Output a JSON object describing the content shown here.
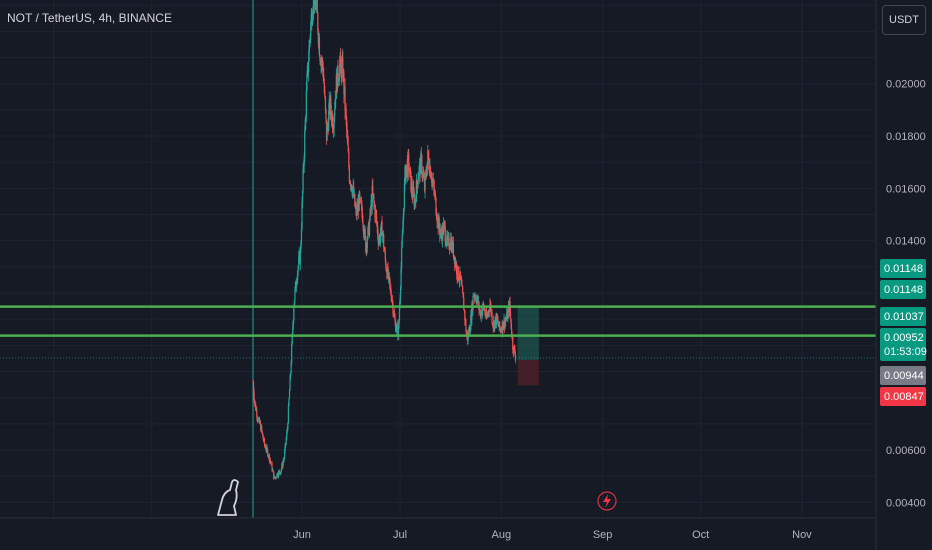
{
  "header": {
    "title": "NOT / TetherUS, 4h, BINANCE",
    "currency_button": "USDT"
  },
  "colors": {
    "background": "#161a25",
    "up": "#26a69a",
    "down": "#ef5350",
    "level_line": "#4caf50",
    "target_zone": "#1c4d48",
    "stop_zone": "#4a2027",
    "stop_label": "#f23645",
    "neutral_label": "#787b86"
  },
  "chart_data": {
    "type": "candlestick",
    "x_axis": {
      "tick_labels": [
        "Jun",
        "Jul",
        "Aug",
        "Sep",
        "Oct",
        "Nov"
      ],
      "ticks_day_offset": [
        0,
        30,
        61,
        92,
        122,
        153
      ],
      "range_day_offset": [
        -15,
        172
      ]
    },
    "y_axis": {
      "tick_labels": [
        "0.02000",
        "0.01800",
        "0.01600",
        "0.01400",
        "0.00600",
        "0.00400"
      ],
      "tick_values": [
        0.02,
        0.018,
        0.016,
        0.014,
        0.006,
        0.004
      ],
      "range": [
        0.0034,
        0.0232
      ]
    },
    "path_points": [
      [
        -15.0,
        0.0086
      ],
      [
        -14.5,
        0.0078
      ],
      [
        -13.5,
        0.0072
      ],
      [
        -12.5,
        0.0068
      ],
      [
        -11.5,
        0.0062
      ],
      [
        -10.5,
        0.0059
      ],
      [
        -9.5,
        0.0055
      ],
      [
        -8.5,
        0.0049
      ],
      [
        -7.5,
        0.0051
      ],
      [
        -6.5,
        0.0052
      ],
      [
        -5.5,
        0.0057
      ],
      [
        -4.5,
        0.0068
      ],
      [
        -3.5,
        0.009
      ],
      [
        -2.5,
        0.0116
      ],
      [
        -1.5,
        0.0128
      ],
      [
        -0.5,
        0.0135
      ],
      [
        0.5,
        0.017
      ],
      [
        1.5,
        0.02
      ],
      [
        2.5,
        0.022
      ],
      [
        3.5,
        0.0235
      ],
      [
        4.5,
        0.0228
      ],
      [
        5.5,
        0.0212
      ],
      [
        6.5,
        0.0205
      ],
      [
        7.5,
        0.018
      ],
      [
        8.5,
        0.0192
      ],
      [
        9.5,
        0.0185
      ],
      [
        10.5,
        0.02
      ],
      [
        11.5,
        0.0207
      ],
      [
        12.5,
        0.0205
      ],
      [
        13.5,
        0.0185
      ],
      [
        14.5,
        0.0165
      ],
      [
        15.5,
        0.016
      ],
      [
        16.5,
        0.015
      ],
      [
        17.5,
        0.0155
      ],
      [
        18.5,
        0.015
      ],
      [
        19.5,
        0.0138
      ],
      [
        20.5,
        0.0145
      ],
      [
        21.5,
        0.0158
      ],
      [
        22.5,
        0.015
      ],
      [
        23.5,
        0.014
      ],
      [
        24.5,
        0.0145
      ],
      [
        25.5,
        0.0132
      ],
      [
        26.5,
        0.0125
      ],
      [
        27.5,
        0.0118
      ],
      [
        28.5,
        0.0108
      ],
      [
        29.5,
        0.0105
      ],
      [
        30.5,
        0.0135
      ],
      [
        31.5,
        0.0165
      ],
      [
        32.5,
        0.017
      ],
      [
        33.5,
        0.016
      ],
      [
        34.5,
        0.0155
      ],
      [
        35.5,
        0.0165
      ],
      [
        36.5,
        0.017
      ],
      [
        37.5,
        0.016
      ],
      [
        38.5,
        0.0172
      ],
      [
        39.5,
        0.0166
      ],
      [
        40.5,
        0.0158
      ],
      [
        41.5,
        0.0148
      ],
      [
        42.5,
        0.0142
      ],
      [
        43.5,
        0.0145
      ],
      [
        44.5,
        0.0138
      ],
      [
        45.5,
        0.014
      ],
      [
        46.5,
        0.0135
      ],
      [
        47.5,
        0.0128
      ],
      [
        48.5,
        0.0125
      ],
      [
        49.5,
        0.0115
      ],
      [
        50.5,
        0.0102
      ],
      [
        51.5,
        0.0108
      ],
      [
        52.5,
        0.012
      ],
      [
        53.5,
        0.0118
      ],
      [
        54.5,
        0.0112
      ],
      [
        55.5,
        0.0115
      ],
      [
        56.5,
        0.011
      ],
      [
        57.5,
        0.0116
      ],
      [
        58.5,
        0.0108
      ],
      [
        59.5,
        0.011
      ],
      [
        60.5,
        0.0106
      ],
      [
        61.5,
        0.0108
      ],
      [
        62.5,
        0.011
      ],
      [
        63.5,
        0.0115
      ],
      [
        64.5,
        0.01
      ],
      [
        65.5,
        0.0095
      ]
    ],
    "levels": [
      {
        "label": "0.01148",
        "value": 0.01148,
        "style": "up"
      },
      {
        "label": "0.01148",
        "value": 0.01148,
        "style": "up"
      },
      {
        "label": "0.01037",
        "value": 0.01037,
        "style": "up"
      },
      {
        "label": "0.00952",
        "value": 0.00952,
        "style": "up",
        "countdown": "01:53:09"
      },
      {
        "label": "0.00944",
        "value": 0.00944,
        "style": "neutral"
      },
      {
        "label": "0.00847",
        "value": 0.00847,
        "style": "down"
      }
    ],
    "horizontal_lines": [
      0.01148,
      0.01037
    ],
    "position": {
      "start_day": 66,
      "end_day": 72.5,
      "entry": 0.00944,
      "target": 0.01148,
      "stop": 0.00847
    },
    "vertical_marker_day": -15,
    "grid": true,
    "legend": "none"
  }
}
